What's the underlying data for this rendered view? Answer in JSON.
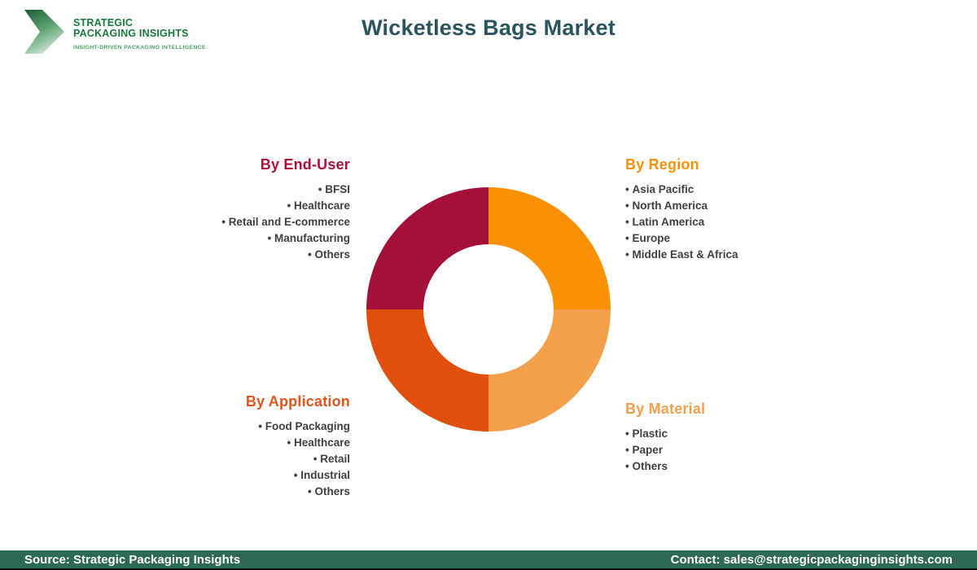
{
  "brand": {
    "name_line1": "STRATEGIC",
    "name_line2": "PACKAGING INSIGHTS",
    "tagline": "INSIGHT-DRIVEN PACKAGING INTELLIGENCE",
    "colors": {
      "dark_green": "#17793B",
      "light_green": "#43A45F"
    }
  },
  "title": "Wicketless Bags Market",
  "title_color": "#2A545E",
  "segments": {
    "end_user": {
      "heading": "By End-User",
      "color": "#AF1239",
      "items": [
        "BFSI",
        "Healthcare",
        "Retail and E-commerce",
        "Manufacturing",
        "Others"
      ]
    },
    "region": {
      "heading": "By Region",
      "color": "#FA9104",
      "items": [
        "Asia Pacific",
        "North America",
        "Latin America",
        "Europe",
        "Middle East & Africa"
      ]
    },
    "application": {
      "heading": "By Application",
      "color": "#E2551C",
      "items": [
        "Food Packaging",
        "Healthcare",
        "Retail",
        "Industrial",
        "Others"
      ]
    },
    "material": {
      "heading": "By Material",
      "color": "#F3A04C",
      "items": [
        "Plastic",
        "Paper",
        "Others"
      ]
    }
  },
  "chart_data": {
    "type": "pie",
    "subtype": "donut",
    "title": "Wicketless Bags Market",
    "slices": [
      {
        "label": "By Region",
        "value": 25,
        "color": "#FA9104",
        "position": "top-right"
      },
      {
        "label": "By Material",
        "value": 25,
        "color": "#F3A04C",
        "position": "bottom-right"
      },
      {
        "label": "By Application",
        "value": 25,
        "color": "#E04F0C",
        "position": "bottom-left"
      },
      {
        "label": "By End-User",
        "value": 25,
        "color": "#A31038",
        "position": "top-left"
      }
    ],
    "inner_radius_ratio": 0.53,
    "start_angle_deg": 0,
    "legend_position": "none"
  },
  "footer": {
    "source": "Source: Strategic Packaging Insights",
    "contact": "Contact: sales@strategicpackaginginsights.com",
    "background": "#2D6A56"
  }
}
